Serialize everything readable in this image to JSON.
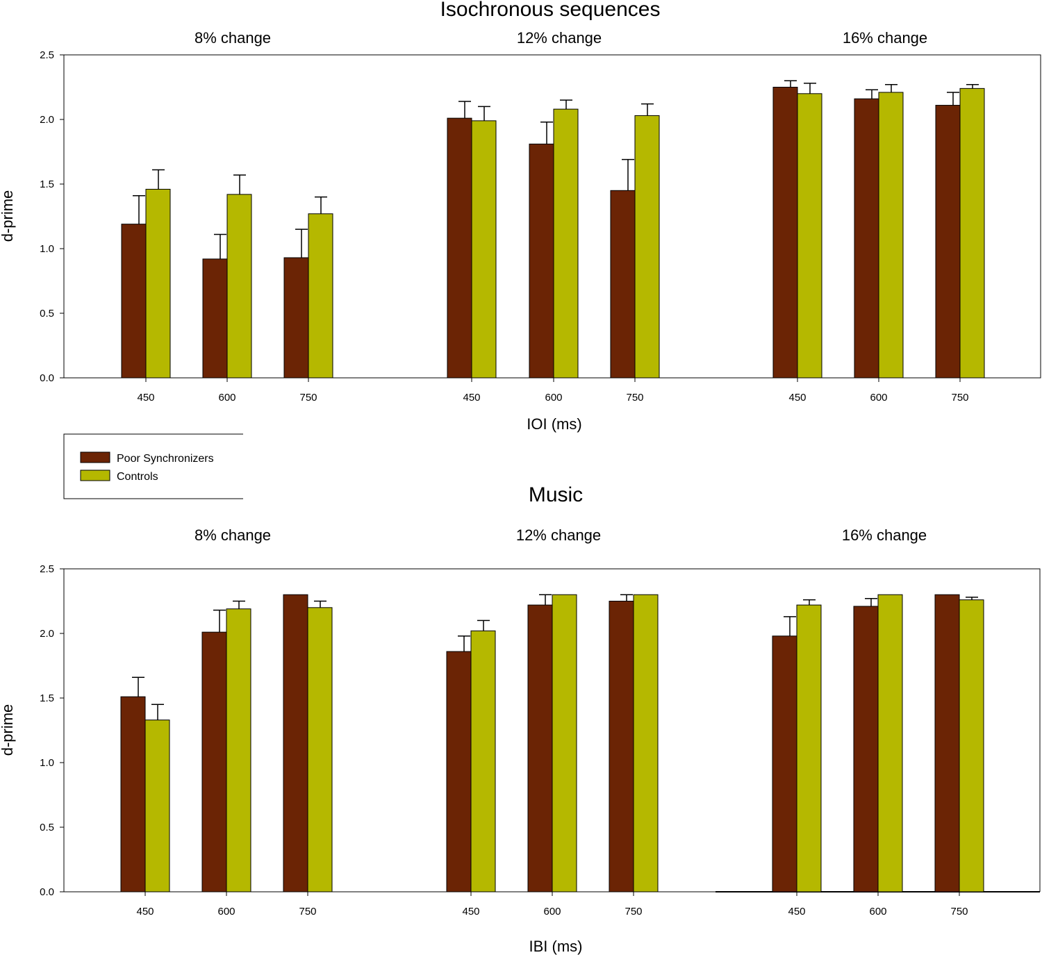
{
  "legend": {
    "entries": [
      {
        "name": "Poor Synchronizers",
        "color": "#6b2405"
      },
      {
        "name": "Controls",
        "color": "#b5b800"
      }
    ]
  },
  "chart_data": [
    {
      "type": "bar",
      "title": "Isochronous sequences",
      "xlabel": "IOI (ms)",
      "ylabel": "d-prime",
      "ylim": [
        0,
        2.5
      ],
      "yticks": [
        "0.0",
        "0.5",
        "1.0",
        "1.5",
        "2.0",
        "2.5"
      ],
      "groups": [
        {
          "label": "8% change",
          "categories": [
            "450",
            "600",
            "750"
          ],
          "series": [
            {
              "name": "Poor Synchronizers",
              "values": [
                1.19,
                0.92,
                0.93
              ],
              "errors": [
                0.22,
                0.19,
                0.22
              ]
            },
            {
              "name": "Controls",
              "values": [
                1.46,
                1.42,
                1.27
              ],
              "errors": [
                0.15,
                0.15,
                0.13
              ]
            }
          ]
        },
        {
          "label": "12% change",
          "categories": [
            "450",
            "600",
            "750"
          ],
          "series": [
            {
              "name": "Poor Synchronizers",
              "values": [
                2.01,
                1.81,
                1.45
              ],
              "errors": [
                0.13,
                0.17,
                0.24
              ]
            },
            {
              "name": "Controls",
              "values": [
                1.99,
                2.08,
                2.03
              ],
              "errors": [
                0.11,
                0.07,
                0.09
              ]
            }
          ]
        },
        {
          "label": "16% change",
          "categories": [
            "450",
            "600",
            "750"
          ],
          "series": [
            {
              "name": "Poor Synchronizers",
              "values": [
                2.25,
                2.16,
                2.11
              ],
              "errors": [
                0.05,
                0.07,
                0.1
              ]
            },
            {
              "name": "Controls",
              "values": [
                2.2,
                2.21,
                2.24
              ],
              "errors": [
                0.08,
                0.06,
                0.03
              ]
            }
          ]
        }
      ]
    },
    {
      "type": "bar",
      "title": "Music",
      "xlabel": "IBI (ms)",
      "ylabel": "d-prime",
      "ylim": [
        0,
        2.5
      ],
      "yticks": [
        "0.0",
        "0.5",
        "1.0",
        "1.5",
        "2.0",
        "2.5"
      ],
      "groups": [
        {
          "label": "8% change",
          "categories": [
            "450",
            "600",
            "750"
          ],
          "series": [
            {
              "name": "Poor Synchronizers",
              "values": [
                1.51,
                2.01,
                2.3
              ],
              "errors": [
                0.15,
                0.17,
                0
              ]
            },
            {
              "name": "Controls",
              "values": [
                1.33,
                2.19,
                2.2
              ],
              "errors": [
                0.12,
                0.06,
                0.05
              ]
            }
          ]
        },
        {
          "label": "12% change",
          "categories": [
            "450",
            "600",
            "750"
          ],
          "series": [
            {
              "name": "Poor Synchronizers",
              "values": [
                1.86,
                2.22,
                2.25
              ],
              "errors": [
                0.12,
                0.08,
                0.05
              ]
            },
            {
              "name": "Controls",
              "values": [
                2.02,
                2.3,
                2.3
              ],
              "errors": [
                0.08,
                0,
                0
              ]
            }
          ]
        },
        {
          "label": "16% change",
          "categories": [
            "450",
            "600",
            "750"
          ],
          "series": [
            {
              "name": "Poor Synchronizers",
              "values": [
                1.98,
                2.21,
                2.3
              ],
              "errors": [
                0.15,
                0.06,
                0
              ]
            },
            {
              "name": "Controls",
              "values": [
                2.22,
                2.3,
                2.26
              ],
              "errors": [
                0.04,
                0,
                0.02
              ]
            }
          ]
        }
      ]
    }
  ]
}
